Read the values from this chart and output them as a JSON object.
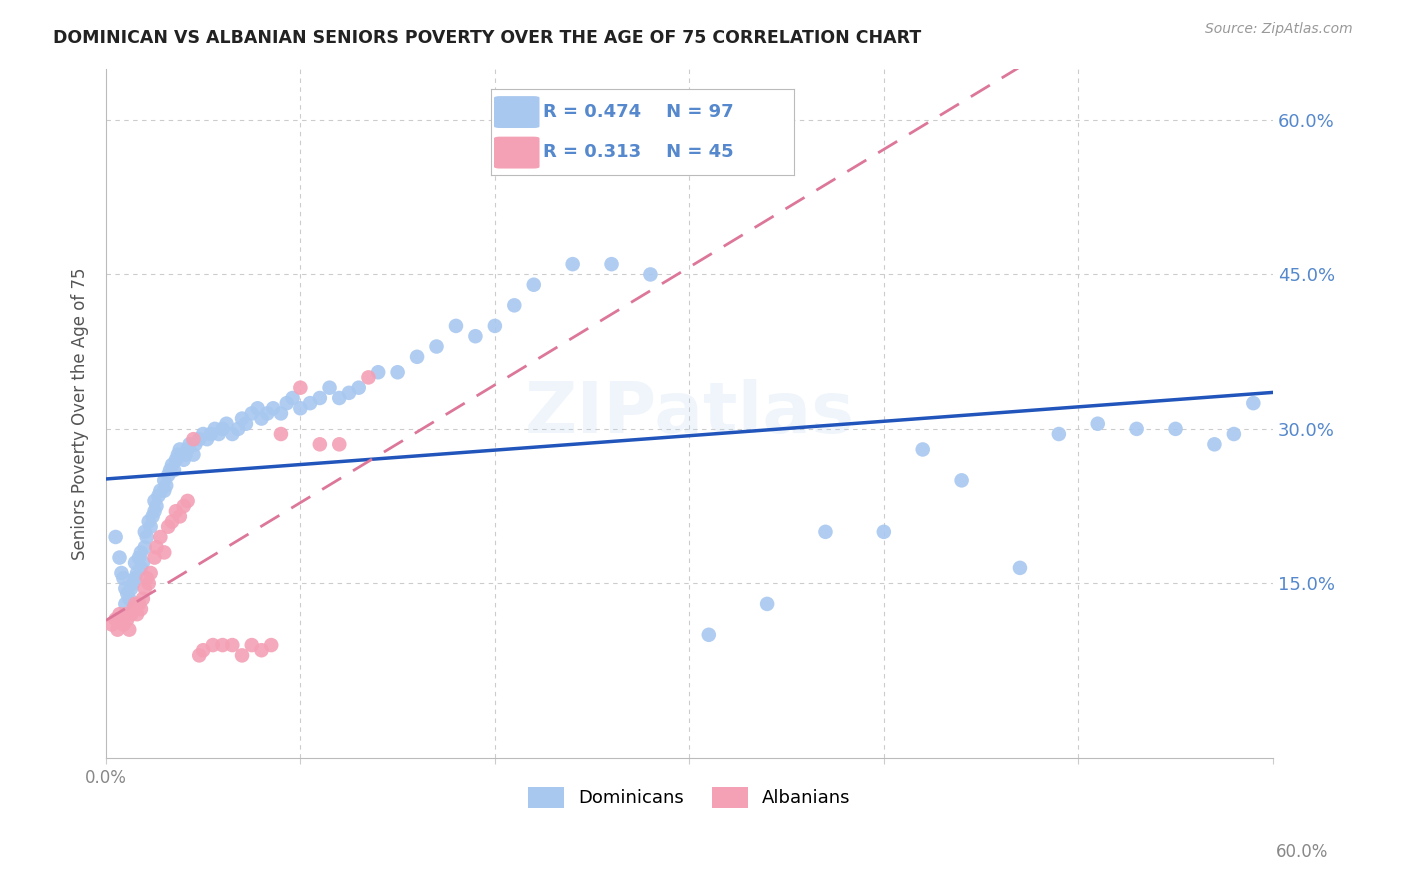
{
  "title": "DOMINICAN VS ALBANIAN SENIORS POVERTY OVER THE AGE OF 75 CORRELATION CHART",
  "source": "Source: ZipAtlas.com",
  "ylabel": "Seniors Poverty Over the Age of 75",
  "xlim": [
    0.0,
    0.6
  ],
  "ylim": [
    -0.02,
    0.65
  ],
  "yticks": [
    0.15,
    0.3,
    0.45,
    0.6
  ],
  "ytick_labels": [
    "15.0%",
    "30.0%",
    "45.0%",
    "60.0%"
  ],
  "dominican_R": 0.474,
  "dominican_N": 97,
  "albanian_R": 0.313,
  "albanian_N": 45,
  "dominican_color": "#A8C8F0",
  "albanian_color": "#F4A0B5",
  "trendline_dominican_color": "#2255BB",
  "trendline_albanian_color": "#DD7799",
  "background_color": "#FFFFFF",
  "grid_color": "#CCCCCC",
  "title_color": "#222222",
  "right_tick_color": "#5588CC",
  "watermark": "ZIPatlas",
  "dominican_x": [
    0.005,
    0.007,
    0.008,
    0.009,
    0.01,
    0.01,
    0.011,
    0.012,
    0.013,
    0.014,
    0.015,
    0.015,
    0.016,
    0.017,
    0.018,
    0.018,
    0.019,
    0.02,
    0.02,
    0.021,
    0.022,
    0.023,
    0.024,
    0.025,
    0.025,
    0.026,
    0.027,
    0.028,
    0.03,
    0.03,
    0.031,
    0.032,
    0.033,
    0.034,
    0.035,
    0.036,
    0.037,
    0.038,
    0.04,
    0.041,
    0.042,
    0.043,
    0.045,
    0.046,
    0.048,
    0.05,
    0.052,
    0.054,
    0.056,
    0.058,
    0.06,
    0.062,
    0.065,
    0.068,
    0.07,
    0.072,
    0.075,
    0.078,
    0.08,
    0.083,
    0.086,
    0.09,
    0.093,
    0.096,
    0.1,
    0.105,
    0.11,
    0.115,
    0.12,
    0.125,
    0.13,
    0.14,
    0.15,
    0.16,
    0.17,
    0.18,
    0.19,
    0.2,
    0.21,
    0.22,
    0.24,
    0.26,
    0.28,
    0.31,
    0.34,
    0.37,
    0.4,
    0.42,
    0.44,
    0.47,
    0.49,
    0.51,
    0.53,
    0.55,
    0.57,
    0.58,
    0.59
  ],
  "dominican_y": [
    0.195,
    0.175,
    0.16,
    0.155,
    0.145,
    0.13,
    0.14,
    0.135,
    0.145,
    0.15,
    0.155,
    0.17,
    0.16,
    0.175,
    0.165,
    0.18,
    0.17,
    0.185,
    0.2,
    0.195,
    0.21,
    0.205,
    0.215,
    0.22,
    0.23,
    0.225,
    0.235,
    0.24,
    0.24,
    0.25,
    0.245,
    0.255,
    0.26,
    0.265,
    0.26,
    0.27,
    0.275,
    0.28,
    0.27,
    0.275,
    0.28,
    0.285,
    0.275,
    0.285,
    0.29,
    0.295,
    0.29,
    0.295,
    0.3,
    0.295,
    0.3,
    0.305,
    0.295,
    0.3,
    0.31,
    0.305,
    0.315,
    0.32,
    0.31,
    0.315,
    0.32,
    0.315,
    0.325,
    0.33,
    0.32,
    0.325,
    0.33,
    0.34,
    0.33,
    0.335,
    0.34,
    0.355,
    0.355,
    0.37,
    0.38,
    0.4,
    0.39,
    0.4,
    0.42,
    0.44,
    0.46,
    0.46,
    0.45,
    0.1,
    0.13,
    0.2,
    0.2,
    0.28,
    0.25,
    0.165,
    0.295,
    0.305,
    0.3,
    0.3,
    0.285,
    0.295,
    0.325
  ],
  "albanian_x": [
    0.003,
    0.005,
    0.006,
    0.007,
    0.008,
    0.009,
    0.01,
    0.011,
    0.012,
    0.013,
    0.014,
    0.015,
    0.016,
    0.017,
    0.018,
    0.019,
    0.02,
    0.021,
    0.022,
    0.023,
    0.025,
    0.026,
    0.028,
    0.03,
    0.032,
    0.034,
    0.036,
    0.038,
    0.04,
    0.042,
    0.045,
    0.048,
    0.05,
    0.055,
    0.06,
    0.065,
    0.07,
    0.075,
    0.08,
    0.085,
    0.09,
    0.1,
    0.11,
    0.12,
    0.135
  ],
  "albanian_y": [
    0.11,
    0.115,
    0.105,
    0.12,
    0.115,
    0.11,
    0.12,
    0.115,
    0.105,
    0.12,
    0.125,
    0.13,
    0.12,
    0.13,
    0.125,
    0.135,
    0.145,
    0.155,
    0.15,
    0.16,
    0.175,
    0.185,
    0.195,
    0.18,
    0.205,
    0.21,
    0.22,
    0.215,
    0.225,
    0.23,
    0.29,
    0.08,
    0.085,
    0.09,
    0.09,
    0.09,
    0.08,
    0.09,
    0.085,
    0.09,
    0.295,
    0.34,
    0.285,
    0.285,
    0.35
  ]
}
